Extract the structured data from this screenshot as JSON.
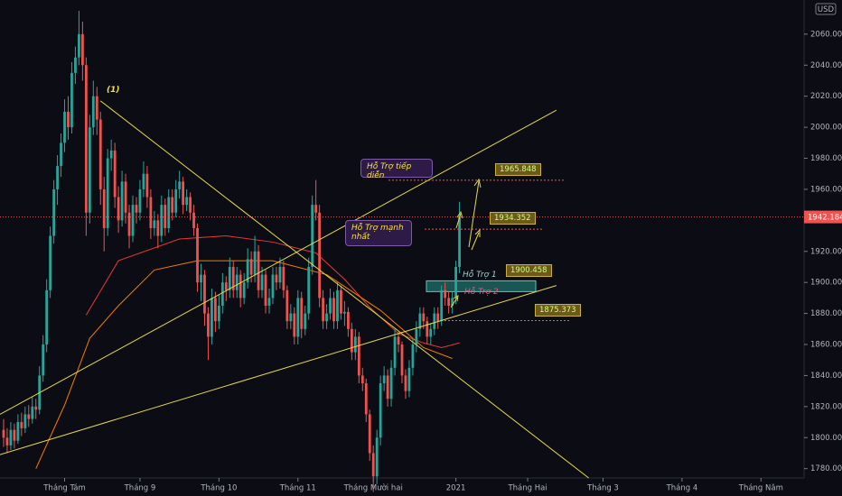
{
  "chart_data": {
    "type": "candlestick",
    "currency": "USD",
    "candles": [
      [
        1805,
        1812,
        1794,
        1800
      ],
      [
        1800,
        1806,
        1790,
        1795
      ],
      [
        1795,
        1810,
        1792,
        1805
      ],
      [
        1805,
        1809,
        1793,
        1798
      ],
      [
        1798,
        1815,
        1796,
        1810
      ],
      [
        1810,
        1816,
        1801,
        1806
      ],
      [
        1806,
        1820,
        1803,
        1815
      ],
      [
        1815,
        1821,
        1807,
        1812
      ],
      [
        1812,
        1826,
        1809,
        1820
      ],
      [
        1820,
        1825,
        1812,
        1818
      ],
      [
        1818,
        1846,
        1815,
        1840
      ],
      [
        1840,
        1866,
        1836,
        1860
      ],
      [
        1860,
        1902,
        1855,
        1895
      ],
      [
        1895,
        1936,
        1890,
        1930
      ],
      [
        1930,
        1966,
        1925,
        1960
      ],
      [
        1960,
        1982,
        1950,
        1975
      ],
      [
        1975,
        1996,
        1968,
        1990
      ],
      [
        1990,
        2018,
        1984,
        2010
      ],
      [
        2010,
        2020,
        1992,
        2000
      ],
      [
        2000,
        2042,
        1996,
        2035
      ],
      [
        2035,
        2052,
        2028,
        2045
      ],
      [
        2045,
        2075,
        2040,
        2060
      ],
      [
        2060,
        2068,
        2030,
        2040
      ],
      [
        2040,
        2045,
        1930,
        1945
      ],
      [
        1945,
        2008,
        1938,
        2000
      ],
      [
        2000,
        2030,
        1995,
        2020
      ],
      [
        2020,
        2026,
        1995,
        2005
      ],
      [
        2005,
        2010,
        1950,
        1960
      ],
      [
        1960,
        1968,
        1920,
        1935
      ],
      [
        1935,
        1986,
        1930,
        1980
      ],
      [
        1980,
        1992,
        1972,
        1985
      ],
      [
        1985,
        1990,
        1948,
        1955
      ],
      [
        1955,
        1962,
        1932,
        1940
      ],
      [
        1940,
        1972,
        1936,
        1965
      ],
      [
        1965,
        1970,
        1938,
        1945
      ],
      [
        1945,
        1950,
        1922,
        1930
      ],
      [
        1930,
        1956,
        1926,
        1950
      ],
      [
        1950,
        1955,
        1938,
        1945
      ],
      [
        1945,
        1966,
        1940,
        1960
      ],
      [
        1960,
        1978,
        1955,
        1970
      ],
      [
        1970,
        1975,
        1948,
        1955
      ],
      [
        1955,
        1960,
        1928,
        1935
      ],
      [
        1935,
        1946,
        1930,
        1940
      ],
      [
        1940,
        1944,
        1922,
        1930
      ],
      [
        1930,
        1956,
        1926,
        1950
      ],
      [
        1950,
        1954,
        1930,
        1935
      ],
      [
        1935,
        1960,
        1932,
        1955
      ],
      [
        1955,
        1960,
        1940,
        1945
      ],
      [
        1945,
        1966,
        1942,
        1960
      ],
      [
        1960,
        1972,
        1954,
        1965
      ],
      [
        1965,
        1968,
        1944,
        1950
      ],
      [
        1950,
        1960,
        1946,
        1955
      ],
      [
        1955,
        1958,
        1940,
        1945
      ],
      [
        1945,
        1950,
        1930,
        1935
      ],
      [
        1935,
        1938,
        1894,
        1900
      ],
      [
        1900,
        1912,
        1888,
        1905
      ],
      [
        1905,
        1908,
        1872,
        1880
      ],
      [
        1880,
        1884,
        1850,
        1865
      ],
      [
        1865,
        1896,
        1860,
        1890
      ],
      [
        1890,
        1894,
        1868,
        1875
      ],
      [
        1875,
        1892,
        1870,
        1885
      ],
      [
        1885,
        1906,
        1880,
        1900
      ],
      [
        1900,
        1904,
        1888,
        1895
      ],
      [
        1895,
        1916,
        1890,
        1910
      ],
      [
        1910,
        1914,
        1890,
        1895
      ],
      [
        1895,
        1910,
        1890,
        1905
      ],
      [
        1905,
        1908,
        1884,
        1890
      ],
      [
        1890,
        1906,
        1886,
        1900
      ],
      [
        1900,
        1922,
        1896,
        1915
      ],
      [
        1915,
        1920,
        1900,
        1905
      ],
      [
        1905,
        1930,
        1900,
        1920
      ],
      [
        1920,
        1924,
        1890,
        1895
      ],
      [
        1895,
        1910,
        1890,
        1905
      ],
      [
        1905,
        1908,
        1880,
        1885
      ],
      [
        1885,
        1896,
        1880,
        1890
      ],
      [
        1890,
        1910,
        1886,
        1905
      ],
      [
        1905,
        1910,
        1895,
        1900
      ],
      [
        1900,
        1916,
        1896,
        1910
      ],
      [
        1910,
        1914,
        1890,
        1895
      ],
      [
        1895,
        1898,
        1870,
        1875
      ],
      [
        1875,
        1886,
        1870,
        1880
      ],
      [
        1880,
        1884,
        1860,
        1865
      ],
      [
        1865,
        1895,
        1860,
        1890
      ],
      [
        1890,
        1894,
        1864,
        1870
      ],
      [
        1870,
        1885,
        1866,
        1880
      ],
      [
        1880,
        1916,
        1876,
        1910
      ],
      [
        1910,
        1956,
        1905,
        1950
      ],
      [
        1950,
        1966,
        1940,
        1945
      ],
      [
        1945,
        1950,
        1884,
        1890
      ],
      [
        1890,
        1895,
        1870,
        1875
      ],
      [
        1875,
        1886,
        1870,
        1880
      ],
      [
        1880,
        1896,
        1876,
        1890
      ],
      [
        1890,
        1894,
        1870,
        1875
      ],
      [
        1875,
        1900,
        1870,
        1895
      ],
      [
        1895,
        1898,
        1876,
        1880
      ],
      [
        1880,
        1888,
        1872,
        1881
      ],
      [
        1881,
        1884,
        1865,
        1870
      ],
      [
        1870,
        1874,
        1850,
        1855
      ],
      [
        1855,
        1870,
        1850,
        1865
      ],
      [
        1865,
        1868,
        1835,
        1840
      ],
      [
        1840,
        1845,
        1830,
        1835
      ],
      [
        1835,
        1838,
        1810,
        1815
      ],
      [
        1815,
        1818,
        1785,
        1790
      ],
      [
        1790,
        1795,
        1765,
        1775
      ],
      [
        1775,
        1805,
        1770,
        1800
      ],
      [
        1800,
        1840,
        1795,
        1835
      ],
      [
        1835,
        1846,
        1830,
        1840
      ],
      [
        1840,
        1844,
        1820,
        1825
      ],
      [
        1825,
        1850,
        1820,
        1845
      ],
      [
        1845,
        1870,
        1840,
        1865
      ],
      [
        1865,
        1868,
        1855,
        1860
      ],
      [
        1860,
        1862,
        1835,
        1840
      ],
      [
        1840,
        1844,
        1825,
        1830
      ],
      [
        1830,
        1850,
        1826,
        1845
      ],
      [
        1845,
        1864,
        1840,
        1860
      ],
      [
        1860,
        1875,
        1855,
        1870
      ],
      [
        1870,
        1884,
        1865,
        1880
      ],
      [
        1880,
        1884,
        1870,
        1875
      ],
      [
        1875,
        1878,
        1860,
        1865
      ],
      [
        1865,
        1874,
        1860,
        1870
      ],
      [
        1870,
        1884,
        1866,
        1880
      ],
      [
        1880,
        1884,
        1870,
        1875
      ],
      [
        1875,
        1898,
        1872,
        1895
      ],
      [
        1895,
        1900,
        1885,
        1890
      ],
      [
        1890,
        1894,
        1880,
        1885
      ],
      [
        1885,
        1894,
        1880,
        1890
      ],
      [
        1890,
        1914,
        1886,
        1910
      ],
      [
        1910,
        1952,
        1906,
        1942.184
      ]
    ],
    "up_color": "#26a69a",
    "down_color": "#ef5350",
    "moving_averages": [
      {
        "color": "#e53935",
        "x": [
          23,
          32,
          49,
          62,
          75,
          87,
          95,
          102,
          110,
          117,
          122,
          127
        ],
        "values": [
          1879,
          1914,
          1928,
          1930,
          1926,
          1919,
          1902,
          1884,
          1867,
          1861,
          1858,
          1861
        ]
      },
      {
        "color": "#f57c00",
        "x": [
          9,
          17,
          24,
          32,
          42,
          54,
          75,
          90,
          105,
          117,
          125
        ],
        "values": [
          1780,
          1821,
          1864,
          1885,
          1908,
          1914,
          1914,
          1905,
          1882,
          1858,
          1851
        ]
      }
    ],
    "trend_lines": [
      {
        "color": "#e6d84a",
        "x": [
          27,
          163
        ],
        "values": [
          2017,
          1774
        ]
      },
      {
        "color": "#e6d84a",
        "x": [
          -1,
          154
        ],
        "values": [
          1815,
          2011
        ]
      },
      {
        "color": "#e6d84a",
        "x": [
          -1,
          154
        ],
        "values": [
          1789,
          1898
        ]
      }
    ],
    "levels": [
      {
        "value": 1965.848,
        "color": "#ef5350"
      },
      {
        "value": 1934.352,
        "color": "#ef5350"
      },
      {
        "value": 1900.458,
        "color": "#26a69a"
      },
      {
        "value": 1875.373,
        "color": "#4caf50"
      }
    ],
    "last_price": 1942.184,
    "annotations": [
      "(1)",
      "Hỗ Trợ tiếp diễn",
      "Hỗ Trợ mạnh nhất",
      "Hỗ Trợ 1",
      "Hỗ Trợ 2"
    ],
    "xlim": [
      -1,
      223
    ],
    "xticks": [
      {
        "value": 17,
        "label": "Tháng Tám"
      },
      {
        "value": 38,
        "label": "Tháng 9"
      },
      {
        "value": 60,
        "label": "Tháng 10"
      },
      {
        "value": 82,
        "label": "Tháng 11"
      },
      {
        "value": 103,
        "label": "Tháng Mười hai"
      },
      {
        "value": 126,
        "label": "2021"
      },
      {
        "value": 146,
        "label": "Tháng Hai"
      },
      {
        "value": 167,
        "label": "Tháng 3"
      },
      {
        "value": 189,
        "label": "Tháng 4"
      },
      {
        "value": 211,
        "label": "Tháng Năm"
      }
    ],
    "ylim": [
      1774,
      2082
    ],
    "yticks": [
      {
        "value": 1780,
        "label": "1780.000"
      },
      {
        "value": 1800,
        "label": "1800.000"
      },
      {
        "value": 1820,
        "label": "1820.000"
      },
      {
        "value": 1840,
        "label": "1840.000"
      },
      {
        "value": 1860,
        "label": "1860.000"
      },
      {
        "value": 1880,
        "label": "1880.000"
      },
      {
        "value": 1900,
        "label": "1900.000"
      },
      {
        "value": 1920,
        "label": "1920.000"
      },
      {
        "value": 1940,
        "label": "1940.000"
      },
      {
        "value": 1960,
        "label": "1960.000"
      },
      {
        "value": 1980,
        "label": "1980.000"
      },
      {
        "value": 2000,
        "label": "2000.000"
      },
      {
        "value": 2020,
        "label": "2020.000"
      },
      {
        "value": 2040,
        "label": "2040.000"
      },
      {
        "value": 2060,
        "label": "2060.000"
      }
    ]
  }
}
